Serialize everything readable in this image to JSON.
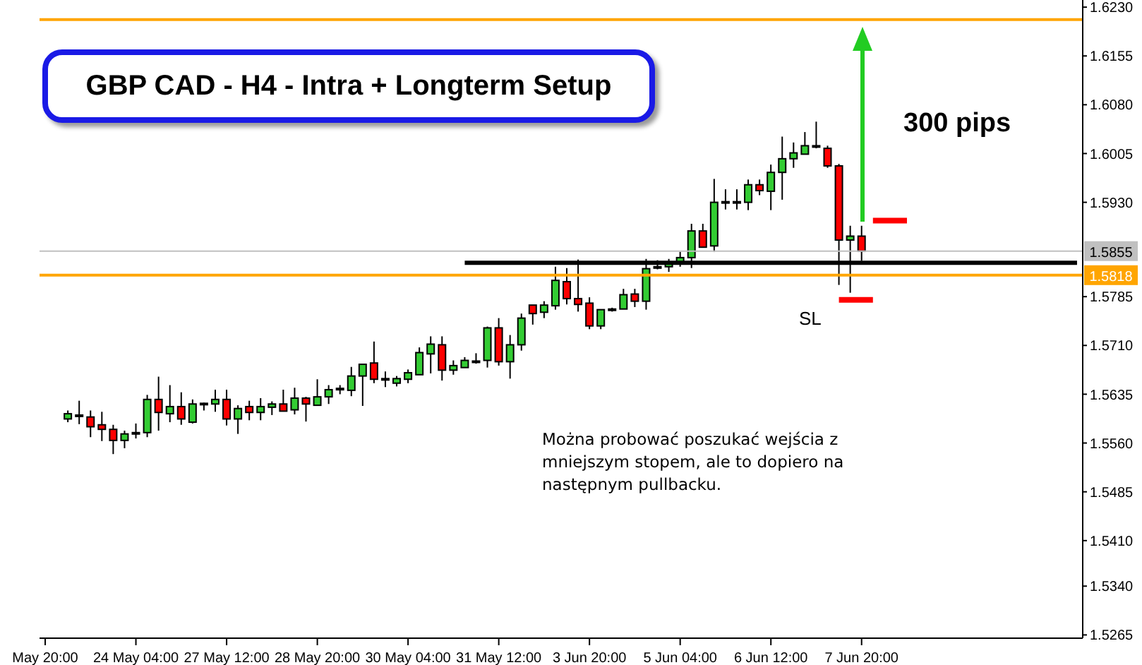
{
  "chart_data": {
    "type": "candlestick",
    "title": "GBP CAD - H4 - Intra + Longterm Setup",
    "annotations": [
      "300 pips",
      "SL",
      "Można probować poszukać wejścia z mniejszym stopem, ale to dopiero na następnym pullbacku."
    ],
    "categories": [
      "May 20:00",
      null,
      null,
      null,
      null,
      null,
      null,
      null,
      "24 May 04:00",
      null,
      null,
      null,
      null,
      null,
      null,
      null,
      "27 May 12:00",
      null,
      null,
      null,
      null,
      null,
      null,
      null,
      "28 May 20:00",
      null,
      null,
      null,
      null,
      null,
      null,
      null,
      "30 May 04:00",
      null,
      null,
      null,
      null,
      null,
      null,
      null,
      "31 May 12:00",
      null,
      null,
      null,
      null,
      null,
      null,
      null,
      "3 Jun 20:00",
      null,
      null,
      null,
      null,
      null,
      null,
      null,
      "5 Jun 04:00",
      null,
      null,
      null,
      null,
      null,
      null,
      null,
      "6 Jun 12:00",
      null,
      null,
      null,
      null,
      null,
      null,
      null,
      "7 Jun 20:00",
      null,
      null,
      null,
      null,
      null,
      null,
      null,
      null,
      null,
      null,
      null,
      null,
      null,
      null,
      null,
      null,
      null,
      null,
      null
    ],
    "ohlc": [
      null,
      null,
      [
        1.5597,
        1.561,
        1.5592,
        1.5605
      ],
      [
        1.5603,
        1.5625,
        1.5589,
        1.5602
      ],
      [
        1.56,
        1.561,
        1.5569,
        1.5585
      ],
      [
        1.5588,
        1.5608,
        1.5563,
        1.5581
      ],
      [
        1.5581,
        1.5588,
        1.5543,
        1.5564
      ],
      [
        1.5564,
        1.5579,
        1.5552,
        1.5574
      ],
      [
        1.5575,
        1.559,
        1.5567,
        1.5576
      ],
      [
        1.5576,
        1.5634,
        1.5569,
        1.5627
      ],
      [
        1.5627,
        1.5662,
        1.5579,
        1.5607
      ],
      [
        1.5605,
        1.5649,
        1.5592,
        1.5616
      ],
      [
        1.5616,
        1.5638,
        1.5588,
        1.5597
      ],
      [
        1.5592,
        1.5627,
        1.559,
        1.562
      ],
      [
        1.5621,
        1.5622,
        1.561,
        1.562
      ],
      [
        1.562,
        1.5642,
        1.5608,
        1.5627
      ],
      [
        1.5627,
        1.5642,
        1.5587,
        1.5597
      ],
      [
        1.5597,
        1.5618,
        1.5574,
        1.5613
      ],
      [
        1.5616,
        1.5625,
        1.5595,
        1.5607
      ],
      [
        1.5607,
        1.5629,
        1.5595,
        1.5616
      ],
      [
        1.5615,
        1.5624,
        1.5603,
        1.562
      ],
      [
        1.562,
        1.5642,
        1.5609,
        1.5609
      ],
      [
        1.5611,
        1.5645,
        1.5604,
        1.5629
      ],
      [
        1.5629,
        1.5631,
        1.5593,
        1.562
      ],
      [
        1.5618,
        1.5658,
        1.5618,
        1.5631
      ],
      [
        1.5631,
        1.5649,
        1.562,
        1.5642
      ],
      [
        1.5643,
        1.5649,
        1.5635,
        1.5644
      ],
      [
        1.5641,
        1.5677,
        1.5632,
        1.5663
      ],
      [
        1.5663,
        1.5681,
        1.5617,
        1.5681
      ],
      [
        1.5683,
        1.5716,
        1.5652,
        1.5658
      ],
      [
        1.5658,
        1.567,
        1.5646,
        1.5659
      ],
      [
        1.5652,
        1.5663,
        1.5647,
        1.5659
      ],
      [
        1.5658,
        1.5673,
        1.5652,
        1.5668
      ],
      [
        1.5665,
        1.5707,
        1.5665,
        1.5699
      ],
      [
        1.5697,
        1.5724,
        1.5667,
        1.5712
      ],
      [
        1.5711,
        1.5724,
        1.5656,
        1.5672
      ],
      [
        1.5672,
        1.5687,
        1.5665,
        1.5679
      ],
      [
        1.5676,
        1.5692,
        1.5676,
        1.5687
      ],
      [
        1.5686,
        1.5698,
        1.5682,
        1.5686
      ],
      [
        1.5687,
        1.5739,
        1.5676,
        1.5737
      ],
      [
        1.5737,
        1.5752,
        1.5679,
        1.5685
      ],
      [
        1.5685,
        1.5726,
        1.5659,
        1.5711
      ],
      [
        1.5711,
        1.5759,
        1.5702,
        1.5752
      ],
      [
        1.5772,
        1.5772,
        1.5742,
        1.5759
      ],
      [
        1.5761,
        1.5778,
        1.5752,
        1.5772
      ],
      [
        1.5771,
        1.5831,
        1.5765,
        1.581
      ],
      [
        1.5808,
        1.5829,
        1.5773,
        1.5782
      ],
      [
        1.5782,
        1.5842,
        1.5762,
        1.5773
      ],
      [
        1.5775,
        1.5784,
        1.5735,
        1.574
      ],
      [
        1.574,
        1.5765,
        1.5735,
        1.5765
      ],
      [
        1.5765,
        1.5768,
        1.5762,
        1.5766
      ],
      [
        1.5766,
        1.5797,
        1.5766,
        1.5788
      ],
      [
        1.5789,
        1.5797,
        1.5769,
        1.5778
      ],
      [
        1.5778,
        1.5843,
        1.5765,
        1.5828
      ],
      [
        1.583,
        1.5841,
        1.5827,
        1.5831
      ],
      [
        1.5831,
        1.5843,
        1.5823,
        1.5836
      ],
      [
        1.5836,
        1.5854,
        1.5831,
        1.5845
      ],
      [
        1.5845,
        1.5897,
        1.5829,
        1.5886
      ],
      [
        1.5886,
        1.5897,
        1.5861,
        1.5861
      ],
      [
        1.5863,
        1.5966,
        1.5854,
        1.593
      ],
      [
        1.593,
        1.595,
        1.5919,
        1.5931
      ],
      [
        1.5931,
        1.595,
        1.5919,
        1.593
      ],
      [
        1.593,
        1.5965,
        1.5918,
        1.5957
      ],
      [
        1.5957,
        1.5965,
        1.5941,
        1.5948
      ],
      [
        1.5947,
        1.5988,
        1.5918,
        1.5976
      ],
      [
        1.5976,
        1.6031,
        1.5934,
        1.5997
      ],
      [
        1.5997,
        1.6022,
        1.5983,
        1.6006
      ],
      [
        1.6004,
        1.6038,
        1.6004,
        1.6017
      ],
      [
        1.6016,
        1.6054,
        1.6013,
        1.6017
      ],
      [
        1.6013,
        1.6017,
        1.5983,
        1.5986
      ],
      [
        1.5986,
        1.5989,
        1.5803,
        1.5872
      ],
      [
        1.5872,
        1.5894,
        1.5791,
        1.5878
      ],
      [
        1.5878,
        1.5894,
        1.584,
        1.5855
      ],
      null,
      null,
      null,
      null,
      null,
      null,
      null,
      null,
      null,
      null,
      null,
      null,
      null,
      null,
      null,
      null,
      null,
      null,
      null
    ],
    "series": [
      {
        "type": "line",
        "color": "#000000",
        "values": [
          null,
          null,
          null,
          null,
          null,
          null,
          null,
          null,
          null,
          null,
          null,
          null,
          null,
          null,
          null,
          null,
          null,
          null,
          null,
          null,
          null,
          null,
          null,
          null,
          null,
          null,
          null,
          null,
          null,
          null,
          null,
          null,
          null,
          null,
          null,
          null,
          null,
          1.5837,
          1.5837,
          1.5837,
          1.5837,
          1.5837,
          1.5837,
          1.5837,
          1.5837,
          1.5837,
          1.5837,
          1.5837,
          1.5837,
          1.5837,
          1.5837,
          1.5837,
          1.5837,
          1.5837,
          1.5837,
          1.5837,
          1.5837,
          1.5837,
          1.5837,
          1.5837,
          1.5837,
          1.5837,
          1.5837,
          1.5837,
          1.5837,
          1.5837,
          1.5837,
          1.5837,
          1.5837,
          1.5837,
          1.5837,
          1.5837,
          1.5837,
          1.5837,
          1.5837,
          1.5837,
          1.5837,
          1.5837,
          1.5837,
          1.5837,
          1.5837,
          1.5837,
          1.5837,
          1.5837,
          1.5837,
          1.5837,
          1.5837,
          1.5837,
          1.5837,
          1.5837,
          1.5837,
          1.5837
        ]
      },
      {
        "type": "line",
        "color": "#ff0000",
        "values": [
          null,
          null,
          null,
          null,
          null,
          null,
          null,
          null,
          null,
          null,
          null,
          null,
          null,
          null,
          null,
          null,
          null,
          null,
          null,
          null,
          null,
          null,
          null,
          null,
          null,
          null,
          null,
          null,
          null,
          null,
          null,
          null,
          null,
          null,
          null,
          null,
          null,
          null,
          null,
          null,
          null,
          null,
          null,
          null,
          null,
          null,
          null,
          null,
          null,
          null,
          null,
          null,
          null,
          null,
          null,
          null,
          null,
          null,
          null,
          null,
          null,
          null,
          null,
          null,
          null,
          null,
          null,
          null,
          null,
          null,
          null,
          null,
          null,
          1.5902,
          1.5902,
          1.5902,
          1.5902,
          null,
          null,
          null,
          null,
          null,
          null,
          null,
          null,
          null,
          null,
          null,
          null,
          null,
          null,
          null
        ]
      },
      {
        "type": "line",
        "color": "#ff0000",
        "values": [
          null,
          null,
          null,
          null,
          null,
          null,
          null,
          null,
          null,
          null,
          null,
          null,
          null,
          null,
          null,
          null,
          null,
          null,
          null,
          null,
          null,
          null,
          null,
          null,
          null,
          null,
          null,
          null,
          null,
          null,
          null,
          null,
          null,
          null,
          null,
          null,
          null,
          null,
          null,
          null,
          null,
          null,
          null,
          null,
          null,
          null,
          null,
          null,
          null,
          null,
          null,
          null,
          null,
          null,
          null,
          null,
          null,
          null,
          null,
          null,
          null,
          null,
          null,
          null,
          null,
          null,
          null,
          null,
          null,
          null,
          1.578,
          1.578,
          1.578,
          1.578,
          null,
          null,
          null,
          null,
          null,
          null,
          null,
          null,
          null,
          null,
          null,
          null,
          null,
          null,
          null,
          null,
          null,
          null
        ]
      }
    ],
    "ref_lines": [
      {
        "axis": "y",
        "value": 1.6211,
        "color": "#ffa500"
      },
      {
        "axis": "y",
        "value": 1.5818,
        "label": "1.5818",
        "color": "#ffa500"
      },
      {
        "axis": "y",
        "value": 1.5855,
        "label": "1.5855",
        "color": "#c0c0c0"
      }
    ],
    "ylim": [
      1.526,
      1.6241
    ],
    "yticks": [
      {
        "value": 1.623,
        "label": "1.6230"
      },
      {
        "value": 1.6155,
        "label": "1.6155"
      },
      {
        "value": 1.608,
        "label": "1.6080"
      },
      {
        "value": 1.6005,
        "label": "1.6005"
      },
      {
        "value": 1.593,
        "label": "1.5930"
      },
      {
        "value": 1.5785,
        "label": "1.5785"
      },
      {
        "value": 1.571,
        "label": "1.5710"
      },
      {
        "value": 1.5635,
        "label": "1.5635"
      },
      {
        "value": 1.556,
        "label": "1.5560"
      },
      {
        "value": 1.5485,
        "label": "1.5485"
      },
      {
        "value": 1.541,
        "label": "1.5410"
      },
      {
        "value": 1.534,
        "label": "1.5340"
      },
      {
        "value": 1.5265,
        "label": "1.5265"
      }
    ],
    "grid": false
  }
}
